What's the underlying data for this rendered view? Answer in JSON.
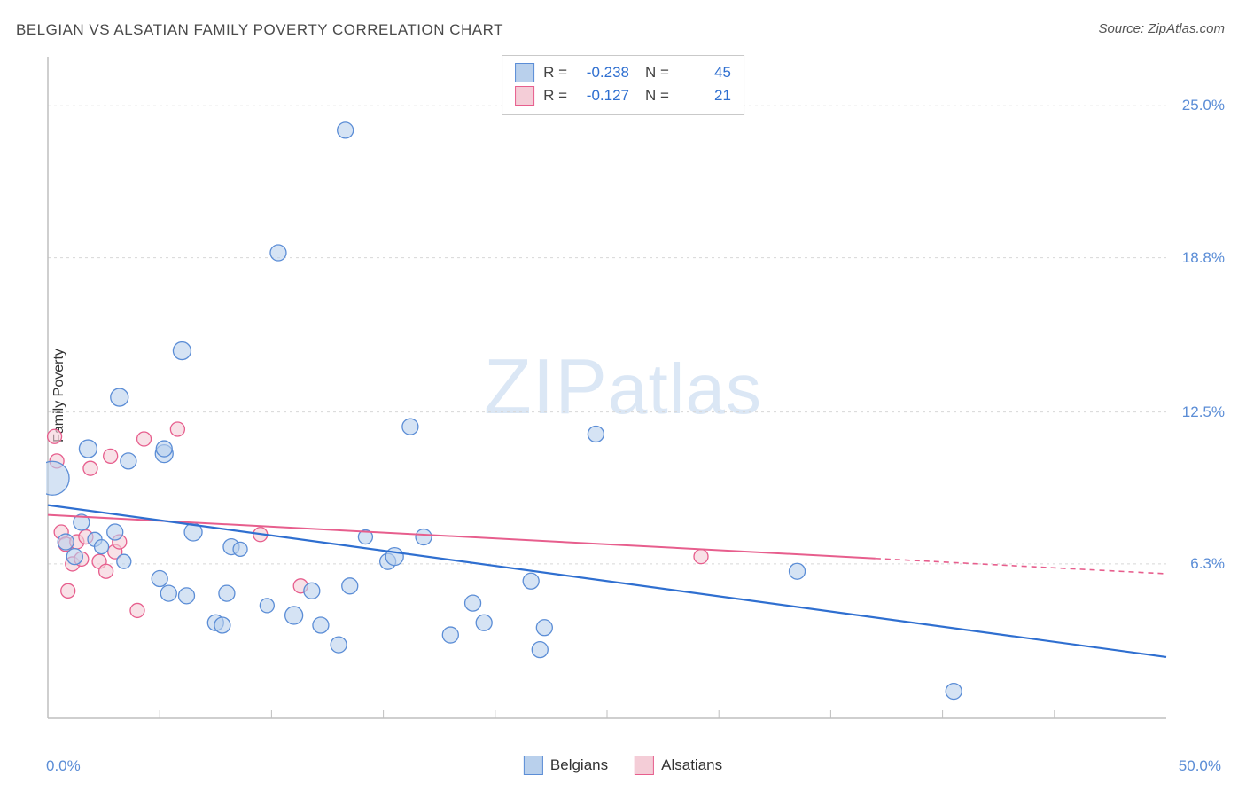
{
  "title": "BELGIAN VS ALSATIAN FAMILY POVERTY CORRELATION CHART",
  "source": "Source: ZipAtlas.com",
  "y_axis_label": "Family Poverty",
  "watermark_zip": "ZIP",
  "watermark_atlas": "atlas",
  "chart": {
    "type": "scatter",
    "xlim": [
      0,
      50
    ],
    "ylim": [
      0,
      27
    ],
    "x_ticks_labeled": [
      {
        "v": 0,
        "label": "0.0%"
      },
      {
        "v": 50,
        "label": "50.0%"
      }
    ],
    "x_minor_ticks": [
      5,
      10,
      15,
      20,
      25,
      30,
      35,
      40,
      45
    ],
    "y_ticks": [
      {
        "v": 6.3,
        "label": "6.3%"
      },
      {
        "v": 12.5,
        "label": "12.5%"
      },
      {
        "v": 18.8,
        "label": "18.8%"
      },
      {
        "v": 25.0,
        "label": "25.0%"
      }
    ],
    "grid_color": "#d7d7d7",
    "axis_color": "#bfbfbf",
    "background_color": "#ffffff",
    "series": {
      "belgians": {
        "label": "Belgians",
        "fill_color": "#b9d0ec",
        "stroke_color": "#5b8dd6",
        "fill_opacity": 0.6,
        "points": [
          {
            "x": 0.2,
            "y": 9.8,
            "r": 19
          },
          {
            "x": 0.8,
            "y": 7.2,
            "r": 9
          },
          {
            "x": 1.5,
            "y": 8.0,
            "r": 9
          },
          {
            "x": 1.8,
            "y": 11.0,
            "r": 10
          },
          {
            "x": 1.2,
            "y": 6.6,
            "r": 9
          },
          {
            "x": 2.1,
            "y": 7.3,
            "r": 8
          },
          {
            "x": 2.4,
            "y": 7.0,
            "r": 8
          },
          {
            "x": 3.0,
            "y": 7.6,
            "r": 9
          },
          {
            "x": 3.4,
            "y": 6.4,
            "r": 8
          },
          {
            "x": 3.2,
            "y": 13.1,
            "r": 10
          },
          {
            "x": 3.6,
            "y": 10.5,
            "r": 9
          },
          {
            "x": 5.0,
            "y": 5.7,
            "r": 9
          },
          {
            "x": 5.2,
            "y": 10.8,
            "r": 10
          },
          {
            "x": 5.2,
            "y": 11.0,
            "r": 9
          },
          {
            "x": 5.4,
            "y": 5.1,
            "r": 9
          },
          {
            "x": 6.2,
            "y": 5.0,
            "r": 9
          },
          {
            "x": 6.0,
            "y": 15.0,
            "r": 10
          },
          {
            "x": 6.5,
            "y": 7.6,
            "r": 10
          },
          {
            "x": 7.5,
            "y": 3.9,
            "r": 9
          },
          {
            "x": 7.8,
            "y": 3.8,
            "r": 9
          },
          {
            "x": 8.2,
            "y": 7.0,
            "r": 9
          },
          {
            "x": 8.0,
            "y": 5.1,
            "r": 9
          },
          {
            "x": 8.6,
            "y": 6.9,
            "r": 8
          },
          {
            "x": 9.8,
            "y": 4.6,
            "r": 8
          },
          {
            "x": 10.3,
            "y": 19.0,
            "r": 9
          },
          {
            "x": 11.0,
            "y": 4.2,
            "r": 10
          },
          {
            "x": 11.8,
            "y": 5.2,
            "r": 9
          },
          {
            "x": 12.2,
            "y": 3.8,
            "r": 9
          },
          {
            "x": 13.0,
            "y": 3.0,
            "r": 9
          },
          {
            "x": 13.3,
            "y": 24.0,
            "r": 9
          },
          {
            "x": 13.5,
            "y": 5.4,
            "r": 9
          },
          {
            "x": 15.2,
            "y": 6.4,
            "r": 9
          },
          {
            "x": 15.5,
            "y": 6.6,
            "r": 10
          },
          {
            "x": 16.2,
            "y": 11.9,
            "r": 9
          },
          {
            "x": 16.8,
            "y": 7.4,
            "r": 9
          },
          {
            "x": 18.0,
            "y": 3.4,
            "r": 9
          },
          {
            "x": 19.5,
            "y": 3.9,
            "r": 9
          },
          {
            "x": 19.0,
            "y": 4.7,
            "r": 9
          },
          {
            "x": 22.0,
            "y": 2.8,
            "r": 9
          },
          {
            "x": 21.6,
            "y": 5.6,
            "r": 9
          },
          {
            "x": 22.2,
            "y": 3.7,
            "r": 9
          },
          {
            "x": 24.5,
            "y": 11.6,
            "r": 9
          },
          {
            "x": 33.5,
            "y": 6.0,
            "r": 9
          },
          {
            "x": 40.5,
            "y": 1.1,
            "r": 9
          },
          {
            "x": 14.2,
            "y": 7.4,
            "r": 8
          }
        ],
        "trend": {
          "x1": 0,
          "y1": 8.7,
          "x2": 50,
          "y2": 2.5,
          "solid_until_x": 50,
          "color": "#2f6fd0",
          "width": 2.2
        },
        "stats": {
          "R": "-0.238",
          "N": "45"
        }
      },
      "alsatians": {
        "label": "Alsatians",
        "fill_color": "#f4cdd7",
        "stroke_color": "#e75e8d",
        "fill_opacity": 0.6,
        "points": [
          {
            "x": 0.3,
            "y": 11.5,
            "r": 8
          },
          {
            "x": 0.4,
            "y": 10.5,
            "r": 8
          },
          {
            "x": 0.6,
            "y": 7.6,
            "r": 8
          },
          {
            "x": 0.8,
            "y": 7.1,
            "r": 8
          },
          {
            "x": 0.9,
            "y": 5.2,
            "r": 8
          },
          {
            "x": 1.1,
            "y": 6.3,
            "r": 8
          },
          {
            "x": 1.3,
            "y": 7.2,
            "r": 8
          },
          {
            "x": 1.5,
            "y": 6.5,
            "r": 8
          },
          {
            "x": 1.7,
            "y": 7.4,
            "r": 8
          },
          {
            "x": 1.9,
            "y": 10.2,
            "r": 8
          },
          {
            "x": 2.3,
            "y": 6.4,
            "r": 8
          },
          {
            "x": 2.6,
            "y": 6.0,
            "r": 8
          },
          {
            "x": 2.8,
            "y": 10.7,
            "r": 8
          },
          {
            "x": 3.0,
            "y": 6.8,
            "r": 8
          },
          {
            "x": 3.2,
            "y": 7.2,
            "r": 8
          },
          {
            "x": 4.0,
            "y": 4.4,
            "r": 8
          },
          {
            "x": 4.3,
            "y": 11.4,
            "r": 8
          },
          {
            "x": 5.8,
            "y": 11.8,
            "r": 8
          },
          {
            "x": 9.5,
            "y": 7.5,
            "r": 8
          },
          {
            "x": 11.3,
            "y": 5.4,
            "r": 8
          },
          {
            "x": 29.2,
            "y": 6.6,
            "r": 8
          }
        ],
        "trend": {
          "x1": 0,
          "y1": 8.3,
          "x2": 50,
          "y2": 5.9,
          "solid_until_x": 37,
          "color": "#e75e8d",
          "width": 2
        },
        "stats": {
          "R": "-0.127",
          "N": "21"
        }
      }
    }
  }
}
